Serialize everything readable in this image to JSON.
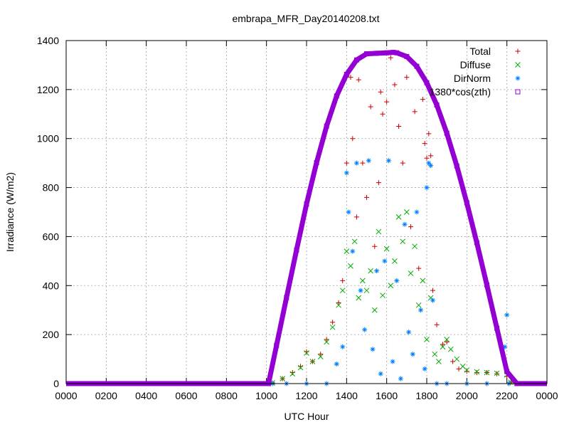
{
  "chart_data": {
    "type": "scatter",
    "title": "embrapa_MFR_Day20140208.txt",
    "xlabel": "UTC Hour",
    "ylabel": "Irradiance (W/m2)",
    "xlim": [
      0,
      24
    ],
    "ylim": [
      0,
      1400
    ],
    "x_tick_values": [
      0,
      2,
      4,
      6,
      8,
      10,
      12,
      14,
      16,
      18,
      20,
      22,
      24
    ],
    "x_tick_labels": [
      "0000",
      "0200",
      "0400",
      "0600",
      "0800",
      "1000",
      "1200",
      "1400",
      "1600",
      "1800",
      "2000",
      "2200",
      "0000"
    ],
    "y_ticks": [
      0,
      200,
      400,
      600,
      800,
      1000,
      1200,
      1400
    ],
    "grid": true,
    "legend_position": "top-right",
    "series": [
      {
        "name": "Total",
        "marker": "plus",
        "color": "#cc0000",
        "x": [
          10.3,
          10.8,
          11.3,
          11.7,
          12.0,
          12.3,
          12.7,
          13.0,
          13.3,
          13.6,
          13.8,
          14.0,
          14.2,
          14.3,
          14.5,
          14.6,
          14.8,
          15.0,
          15.2,
          15.4,
          15.6,
          15.7,
          15.8,
          16.0,
          16.2,
          16.4,
          16.6,
          16.8,
          17.0,
          17.2,
          17.4,
          17.6,
          17.8,
          17.9,
          18.0,
          18.1,
          18.2,
          18.3,
          18.5,
          18.8,
          19.0,
          19.3,
          19.6,
          20.0,
          20.5,
          21.0,
          21.5,
          22.0,
          22.2
        ],
        "y": [
          3,
          20,
          45,
          70,
          130,
          90,
          120,
          180,
          250,
          330,
          420,
          900,
          1250,
          1000,
          680,
          1240,
          900,
          760,
          1130,
          560,
          820,
          1190,
          1100,
          1150,
          1330,
          1220,
          1050,
          900,
          1250,
          640,
          1110,
          470,
          1160,
          980,
          920,
          1020,
          930,
          380,
          240,
          160,
          170,
          90,
          60,
          50,
          45,
          45,
          40,
          30,
          5
        ]
      },
      {
        "name": "Diffuse",
        "marker": "cross",
        "color": "#00aa00",
        "x": [
          10.3,
          10.8,
          11.3,
          11.7,
          12.0,
          12.3,
          12.7,
          13.0,
          13.3,
          13.6,
          13.8,
          14.0,
          14.2,
          14.4,
          14.6,
          14.8,
          15.0,
          15.2,
          15.4,
          15.6,
          15.8,
          16.0,
          16.2,
          16.4,
          16.6,
          16.8,
          17.0,
          17.2,
          17.4,
          17.6,
          17.8,
          18.0,
          18.2,
          18.4,
          18.6,
          18.8,
          19.0,
          19.2,
          19.5,
          19.8,
          20.0,
          20.5,
          21.0,
          21.5,
          22.0,
          22.2
        ],
        "y": [
          3,
          20,
          40,
          65,
          125,
          90,
          110,
          170,
          230,
          320,
          380,
          540,
          480,
          580,
          350,
          420,
          380,
          460,
          300,
          620,
          360,
          550,
          400,
          500,
          680,
          580,
          700,
          450,
          560,
          320,
          420,
          180,
          350,
          120,
          90,
          150,
          180,
          140,
          100,
          70,
          55,
          48,
          45,
          42,
          35,
          5
        ]
      },
      {
        "name": "DirNorm",
        "marker": "star",
        "color": "#0080ff",
        "x": [
          10.3,
          11.0,
          12.0,
          13.0,
          13.5,
          13.8,
          14.0,
          14.1,
          14.3,
          14.5,
          14.7,
          14.9,
          15.1,
          15.3,
          15.5,
          15.7,
          15.9,
          16.1,
          16.3,
          16.5,
          16.7,
          16.9,
          17.1,
          17.3,
          17.5,
          17.7,
          17.9,
          18.0,
          18.1,
          18.2,
          18.3,
          18.5,
          19.0,
          20.0,
          21.0,
          21.9,
          22.0,
          22.1
        ],
        "y": [
          0,
          0,
          0,
          0,
          80,
          150,
          860,
          700,
          540,
          900,
          380,
          220,
          910,
          140,
          460,
          40,
          500,
          910,
          90,
          420,
          20,
          650,
          210,
          120,
          700,
          300,
          60,
          800,
          900,
          890,
          340,
          0,
          0,
          0,
          0,
          150,
          280,
          0
        ]
      },
      {
        "name": "1380*cos(zth)",
        "marker": "square",
        "color": "#9400d3",
        "x": [
          10.1,
          10.5,
          11.0,
          11.5,
          12.0,
          12.5,
          13.0,
          13.5,
          14.0,
          14.5,
          15.0,
          15.5,
          16.0,
          16.33,
          16.5,
          17.0,
          17.5,
          18.0,
          18.5,
          19.0,
          19.5,
          20.0,
          20.5,
          21.0,
          21.5,
          22.0,
          22.5
        ],
        "y": [
          0,
          156,
          351,
          545,
          733,
          902,
          1051,
          1174,
          1262,
          1321,
          1346,
          1348,
          1350,
          1352,
          1350,
          1335,
          1295,
          1228,
          1137,
          1022,
          888,
          738,
          575,
          403,
          226,
          49,
          0
        ]
      }
    ]
  }
}
